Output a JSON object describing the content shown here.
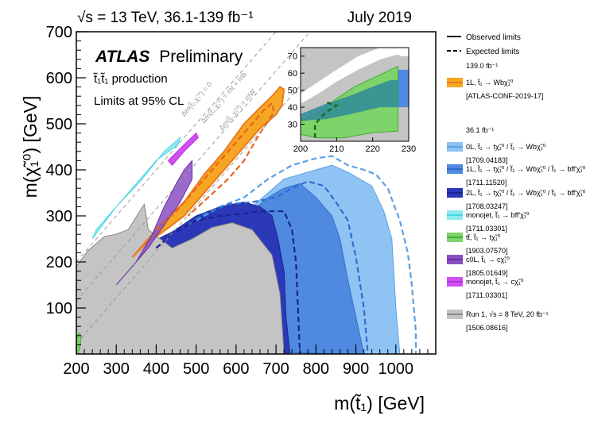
{
  "chart_data": {
    "type": "exclusion-contour",
    "header_left": "√s = 13 TeV, 36.1-139 fb⁻¹",
    "header_right": "July 2019",
    "title_bold": "ATLAS",
    "title_rest": "Preliminary",
    "process": "t̃₁t̃₁ production",
    "cl_note": "Limits at 95% CL",
    "xlabel": "m(t̃₁) [GeV]",
    "ylabel": "m(χ̃₁⁰) [GeV]",
    "xlim": [
      200,
      1100
    ],
    "ylim": [
      0,
      700
    ],
    "x_ticks": [
      200,
      300,
      400,
      500,
      600,
      700,
      800,
      900,
      1000
    ],
    "y_ticks": [
      100,
      200,
      300,
      400,
      500,
      600,
      700
    ],
    "diagonal_labels": [
      "Δm(t̃₁,χ̃₁⁰) = 0",
      "Δm(t̃₁,χ̃₁⁰) = mt + mb",
      "Δm(t̃₁,χ̃₁⁰) = mW"
    ],
    "inset": {
      "xlim": [
        200,
        230
      ],
      "ylim": [
        20,
        75
      ],
      "x_ticks": [
        200,
        210,
        220,
        230
      ],
      "y_ticks": [
        30,
        40,
        50,
        60,
        70
      ]
    },
    "legend_lines": {
      "observed": "Observed limits",
      "expected": "Expected limits"
    },
    "legend": [
      {
        "group": "139.0 fb⁻¹",
        "label": "1L, t̃₁ → Wbχ̃₁⁰",
        "ref": "[ATLAS-CONF-2019-17]",
        "color": "#f5a623",
        "edge": "#ec7a1c"
      },
      {
        "group": "36.1 fb⁻¹",
        "label": "0L, t̃₁ → tχ̃₁⁰ / t̃₁ → Wbχ̃₁⁰",
        "ref": "[1709.04183]",
        "color": "#8ec3f3",
        "edge": "#5aa0e6"
      },
      {
        "group": "",
        "label": "1L, t̃₁ → tχ̃₁⁰ / t̃₁ → Wbχ̃₁⁰ / t̃₁ → bff'χ̃₁⁰",
        "ref": "[1711.11520]",
        "color": "#4f8ae0",
        "edge": "#2f6cd0"
      },
      {
        "group": "",
        "label": "2L, t̃₁ → tχ̃₁⁰ / t̃₁ → Wbχ̃₁⁰ / t̃₁ → bff'χ̃₁⁰",
        "ref": "[1708.03247]",
        "color": "#2b38b8",
        "edge": "#1a2590"
      },
      {
        "group": "",
        "label": "monojet, t̃₁ → bff'χ̃₁⁰",
        "ref": "[1711.03301]",
        "color": "#8fe9f0",
        "edge": "#4dd6e3"
      },
      {
        "group": "",
        "label": "tt̄, t̃₁ → tχ̃₁⁰",
        "ref": "[1903.07570]",
        "color": "#7ed36a",
        "edge": "#3fae2e"
      },
      {
        "group": "",
        "label": "c0L, t̃₁ → cχ̃₁⁰",
        "ref": "[1805.01649]",
        "color": "#8a4fc2",
        "edge": "#6a2fa5"
      },
      {
        "group": "",
        "label": "monojet, t̃₁ → cχ̃₁⁰",
        "ref": "[1711.03301]",
        "color": "#d24ff0",
        "edge": "#b52ee0"
      },
      {
        "group": "",
        "label": "Run 1, √s = 8 TeV, 20 fb⁻¹",
        "ref": "[1506.08616]",
        "color": "#c4c4c4",
        "edge": "#8a8a8a"
      }
    ],
    "regions": {
      "run1": [
        [
          200,
          0
        ],
        [
          200,
          190
        ],
        [
          230,
          225
        ],
        [
          270,
          255
        ],
        [
          300,
          260
        ],
        [
          330,
          270
        ],
        [
          370,
          325
        ],
        [
          380,
          270
        ],
        [
          440,
          230
        ],
        [
          490,
          250
        ],
        [
          540,
          275
        ],
        [
          590,
          285
        ],
        [
          640,
          270
        ],
        [
          690,
          215
        ],
        [
          710,
          130
        ],
        [
          720,
          0
        ]
      ],
      "twoL": [
        [
          380,
          0
        ],
        [
          380,
          240
        ],
        [
          440,
          265
        ],
        [
          500,
          300
        ],
        [
          560,
          320
        ],
        [
          620,
          330
        ],
        [
          660,
          320
        ],
        [
          690,
          300
        ],
        [
          705,
          250
        ],
        [
          720,
          180
        ],
        [
          725,
          80
        ],
        [
          735,
          0
        ]
      ],
      "oneL": [
        [
          200,
          10
        ],
        [
          220,
          60
        ],
        [
          240,
          95
        ],
        [
          260,
          120
        ],
        [
          300,
          140
        ],
        [
          340,
          175
        ],
        [
          380,
          210
        ],
        [
          400,
          215
        ],
        [
          440,
          245
        ],
        [
          480,
          270
        ],
        [
          500,
          280
        ],
        [
          520,
          290
        ],
        [
          560,
          300
        ],
        [
          600,
          305
        ],
        [
          640,
          310
        ],
        [
          680,
          340
        ],
        [
          720,
          360
        ],
        [
          760,
          370
        ],
        [
          800,
          340
        ],
        [
          820,
          320
        ],
        [
          840,
          300
        ],
        [
          860,
          250
        ],
        [
          880,
          160
        ],
        [
          900,
          80
        ],
        [
          920,
          0
        ]
      ],
      "zeroL": [
        [
          600,
          310
        ],
        [
          640,
          320
        ],
        [
          680,
          350
        ],
        [
          720,
          380
        ],
        [
          760,
          390
        ],
        [
          800,
          400
        ],
        [
          840,
          410
        ],
        [
          880,
          395
        ],
        [
          920,
          375
        ],
        [
          940,
          365
        ],
        [
          970,
          310
        ],
        [
          990,
          250
        ],
        [
          1000,
          100
        ],
        [
          1010,
          0
        ],
        [
          760,
          0
        ]
      ],
      "oneL139": [
        [
          340,
          210
        ],
        [
          380,
          250
        ],
        [
          420,
          290
        ],
        [
          470,
          330
        ],
        [
          520,
          390
        ],
        [
          570,
          440
        ],
        [
          620,
          500
        ],
        [
          660,
          535
        ],
        [
          690,
          560
        ],
        [
          710,
          580
        ],
        [
          720,
          575
        ],
        [
          715,
          540
        ],
        [
          700,
          520
        ],
        [
          660,
          490
        ],
        [
          620,
          450
        ],
        [
          580,
          410
        ],
        [
          540,
          370
        ],
        [
          500,
          330
        ],
        [
          470,
          300
        ],
        [
          440,
          280
        ],
        [
          400,
          255
        ],
        [
          380,
          245
        ]
      ],
      "c0L": [
        [
          300,
          150
        ],
        [
          350,
          200
        ],
        [
          390,
          260
        ],
        [
          420,
          320
        ],
        [
          450,
          370
        ],
        [
          470,
          400
        ],
        [
          490,
          420
        ],
        [
          490,
          380
        ],
        [
          460,
          330
        ],
        [
          420,
          280
        ],
        [
          380,
          230
        ],
        [
          330,
          180
        ]
      ],
      "monojet_c": [
        [
          430,
          420
        ],
        [
          470,
          455
        ],
        [
          500,
          480
        ],
        [
          505,
          470
        ],
        [
          470,
          440
        ],
        [
          440,
          410
        ]
      ],
      "monojet_b": [
        [
          240,
          250
        ],
        [
          300,
          320
        ],
        [
          360,
          375
        ],
        [
          420,
          440
        ],
        [
          460,
          470
        ],
        [
          455,
          455
        ],
        [
          400,
          420
        ],
        [
          340,
          360
        ],
        [
          280,
          300
        ],
        [
          250,
          270
        ]
      ],
      "tt": [
        [
          200,
          0
        ],
        [
          200,
          30
        ],
        [
          206,
          45
        ],
        [
          212,
          40
        ],
        [
          210,
          20
        ],
        [
          205,
          0
        ]
      ]
    },
    "expected": {
      "orange": [
        [
          400,
          270
        ],
        [
          450,
          310
        ],
        [
          500,
          360
        ],
        [
          550,
          410
        ],
        [
          600,
          460
        ],
        [
          640,
          500
        ],
        [
          670,
          530
        ],
        [
          690,
          545
        ],
        [
          695,
          525
        ],
        [
          660,
          480
        ],
        [
          620,
          420
        ],
        [
          580,
          380
        ],
        [
          530,
          340
        ],
        [
          480,
          300
        ]
      ],
      "zeroL": [
        [
          500,
          290
        ],
        [
          560,
          320
        ],
        [
          620,
          340
        ],
        [
          680,
          380
        ],
        [
          740,
          410
        ],
        [
          800,
          425
        ],
        [
          840,
          430
        ],
        [
          860,
          420
        ],
        [
          880,
          410
        ],
        [
          900,
          405
        ],
        [
          920,
          400
        ],
        [
          950,
          390
        ],
        [
          980,
          360
        ],
        [
          1010,
          290
        ],
        [
          1030,
          220
        ],
        [
          1040,
          150
        ],
        [
          1050,
          50
        ],
        [
          1050,
          0
        ]
      ],
      "oneL": [
        [
          480,
          280
        ],
        [
          520,
          305
        ],
        [
          580,
          325
        ],
        [
          640,
          330
        ],
        [
          700,
          340
        ],
        [
          740,
          360
        ],
        [
          780,
          375
        ],
        [
          820,
          365
        ],
        [
          850,
          330
        ],
        [
          880,
          290
        ],
        [
          900,
          210
        ],
        [
          920,
          100
        ],
        [
          930,
          0
        ]
      ],
      "twoL": [
        [
          400,
          230
        ],
        [
          440,
          260
        ],
        [
          500,
          290
        ],
        [
          560,
          300
        ],
        [
          620,
          305
        ],
        [
          660,
          310
        ],
        [
          720,
          310
        ],
        [
          740,
          270
        ],
        [
          750,
          200
        ],
        [
          755,
          100
        ],
        [
          760,
          0
        ]
      ]
    }
  }
}
